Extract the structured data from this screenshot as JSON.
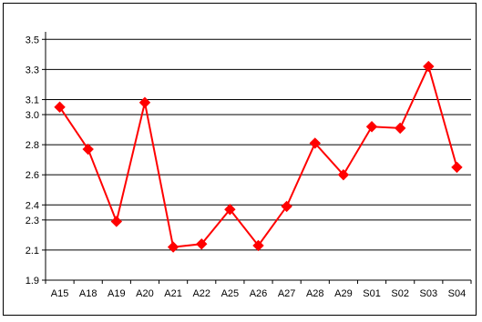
{
  "chart_data": {
    "type": "line",
    "categories": [
      "A15",
      "A18",
      "A19",
      "A20",
      "A21",
      "A22",
      "A25",
      "A26",
      "A27",
      "A28",
      "A29",
      "S01",
      "S02",
      "S03",
      "S04"
    ],
    "series": [
      {
        "values": [
          3.05,
          2.77,
          2.29,
          3.08,
          2.12,
          2.14,
          2.37,
          2.13,
          2.39,
          2.81,
          2.6,
          2.92,
          2.91,
          3.32,
          2.65
        ]
      }
    ],
    "y_ticks": [
      "1.9",
      "2.1",
      "2.3",
      "2.4",
      "2.6",
      "2.8",
      "3.0",
      "3.1",
      "3.3",
      "3.5"
    ],
    "ylim": [
      1.9,
      3.55
    ],
    "grid": true,
    "legend": "none",
    "colors": {
      "series": "#ff0000",
      "grid": "#000000",
      "background": "#ffffff"
    }
  }
}
